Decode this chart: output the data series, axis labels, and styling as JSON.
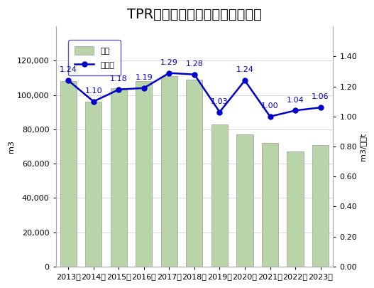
{
  "title": "TPR工業の水使用量と原単位推移",
  "years": [
    "2013年",
    "2014年",
    "2015年",
    "2016年",
    "2017年",
    "2018年",
    "2019年",
    "2020年",
    "2021年",
    "2022年",
    "2023年"
  ],
  "bar_values": [
    108000,
    96000,
    104000,
    108000,
    111000,
    109000,
    83000,
    77000,
    72000,
    67000,
    71000
  ],
  "line_values": [
    1.24,
    1.1,
    1.18,
    1.19,
    1.29,
    1.28,
    1.03,
    1.24,
    1.0,
    1.04,
    1.06
  ],
  "bar_color": "#b8d4a8",
  "bar_edgecolor": "#999999",
  "line_color": "#0000cc",
  "marker_color": "#0000cc",
  "left_ylabel": "m3",
  "right_ylabel": "m3/溶解t",
  "left_ylim": [
    0,
    140000
  ],
  "right_ylim": [
    0.0,
    1.6
  ],
  "left_yticks": [
    0,
    20000,
    40000,
    60000,
    80000,
    100000,
    120000
  ],
  "right_yticks": [
    0.0,
    0.2,
    0.4,
    0.6,
    0.8,
    1.0,
    1.2,
    1.4
  ],
  "legend_labels": [
    "総量",
    "原単位"
  ],
  "bg_color": "#ffffff",
  "grid_color": "#cccccc",
  "title_fontsize": 14,
  "label_fontsize": 8,
  "tick_fontsize": 8,
  "annotation_fontsize": 8,
  "border_color": "#aaaaaa"
}
